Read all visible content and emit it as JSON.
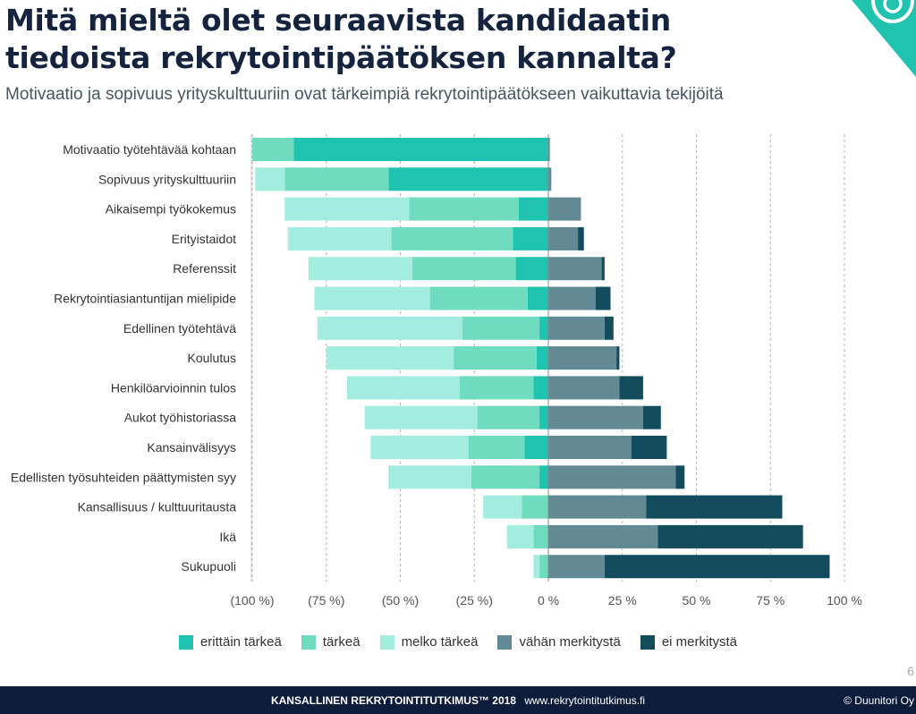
{
  "header": {
    "title": "Mitä mieltä olet seuraavista kandidaatin tiedoista rekrytointipäätöksen kannalta?",
    "subtitle": "Motivaatio ja sopivuus yrityskulttuuriin ovat tärkeimpiä rekrytointipäätökseen vaikuttavia tekijöitä"
  },
  "colors": {
    "erittain": "#1fc3b0",
    "tarkea": "#6fdcc0",
    "melko": "#a3ede0",
    "vahan": "#638a94",
    "ei": "#134d5d",
    "accent": "#1fc3b0"
  },
  "chart_data": {
    "type": "bar",
    "orientation": "horizontal-diverging",
    "title": "",
    "xlabel": "",
    "ylabel": "",
    "xlim": [
      -100,
      100
    ],
    "xticks": [
      -100,
      -75,
      -50,
      -25,
      0,
      25,
      50,
      75,
      100
    ],
    "tick_labels": [
      "(100 %)",
      "(75 %)",
      "(50 %)",
      "(25 %)",
      "0 %",
      "25 %",
      "50 %",
      "75 %",
      "100 %"
    ],
    "grid": true,
    "legend_position": "bottom",
    "categories": [
      "Motivaatio työtehtävää kohtaan",
      "Sopivuus yrityskulttuuriin",
      "Aikaisempi työkokemus",
      "Erityistaidot",
      "Referenssit",
      "Rekrytointiasiantuntijan mielipide",
      "Edellinen työtehtävä",
      "Koulutus",
      "Henkilöarvioinnin tulos",
      "Aukot työhistoriassa",
      "Kansainvälisyys",
      "Edellisten työsuhteiden päättymisten syy",
      "Kansallisuus / kulttuuritausta",
      "Ikä",
      "Sukupuoli"
    ],
    "series": [
      {
        "name": "erittäin tärkeä",
        "side": "negative",
        "color": "#1fc3b0",
        "values": [
          86,
          54,
          10,
          12,
          11,
          7,
          3,
          4,
          5,
          3,
          8,
          3,
          0,
          0,
          0
        ]
      },
      {
        "name": "tärkeä",
        "side": "negative",
        "color": "#6fdcc0",
        "values": [
          14,
          35,
          37,
          41,
          35,
          33,
          26,
          28,
          25,
          21,
          19,
          23,
          9,
          5,
          3
        ]
      },
      {
        "name": "melko tärkeä",
        "side": "negative",
        "color": "#a3ede0",
        "values": [
          0,
          10,
          42,
          35,
          35,
          39,
          49,
          43,
          38,
          38,
          33,
          28,
          13,
          9,
          2
        ]
      },
      {
        "name": "vähän merkitystä",
        "side": "positive",
        "color": "#638a94",
        "values": [
          0.5,
          1,
          11,
          10,
          18,
          16,
          19,
          23,
          24,
          32,
          28,
          43,
          33,
          37,
          19
        ]
      },
      {
        "name": "ei merkitystä",
        "side": "positive",
        "color": "#134d5d",
        "values": [
          0,
          0,
          0,
          2,
          1,
          5,
          3,
          1,
          8,
          6,
          12,
          3,
          46,
          49,
          76
        ]
      }
    ]
  },
  "legend": [
    {
      "label": "erittäin tärkeä",
      "color": "#1fc3b0"
    },
    {
      "label": "tärkeä",
      "color": "#6fdcc0"
    },
    {
      "label": "melko tärkeä",
      "color": "#a3ede0"
    },
    {
      "label": "vähän merkitystä",
      "color": "#638a94"
    },
    {
      "label": "ei merkitystä",
      "color": "#134d5d"
    }
  ],
  "page_number": "6",
  "footer": {
    "brand": "KANSALLINEN REKRYTOINTITUTKIMUS™ 2018",
    "url": "www.rekrytointitutkimus.fi",
    "copyright": "© Duunitori Oy"
  }
}
